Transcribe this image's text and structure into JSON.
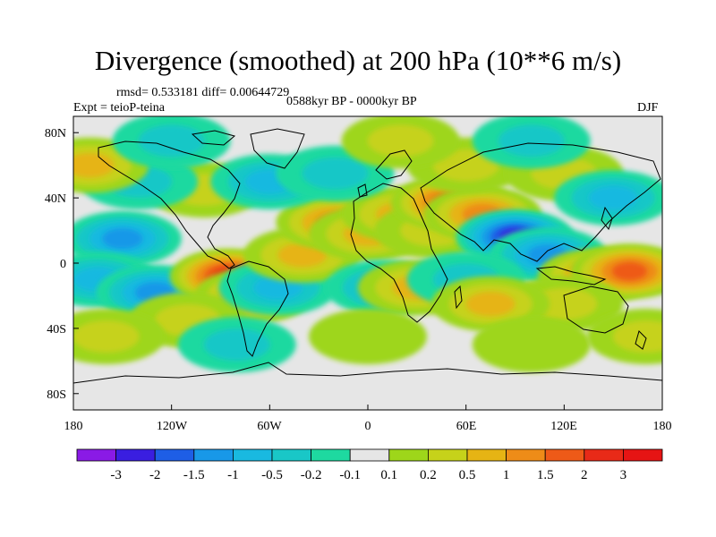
{
  "title": "Divergence (smoothed) at 200 hPa (10**6 m/s)",
  "stats_line": "rmsd= 0.533181 diff= 0.00644729",
  "period": "0588kyr BP - 0000kyr BP",
  "experiment": "Expt = teioP-teina",
  "season": "DJF",
  "lat_labels": [
    "80N",
    "40N",
    "0",
    "40S",
    "80S"
  ],
  "lon_labels": [
    "180",
    "120W",
    "60W",
    "0",
    "60E",
    "120E",
    "180"
  ],
  "colorbar": {
    "labels": [
      "-3",
      "-2",
      "-1.5",
      "-1",
      "-0.5",
      "-0.2",
      "-0.1",
      "0.1",
      "0.2",
      "0.5",
      "1",
      "1.5",
      "2",
      "3"
    ],
    "colors": [
      "#8a1ae6",
      "#3a1ee0",
      "#1e5ee6",
      "#1898e8",
      "#19b9e0",
      "#19c7c7",
      "#1ed9a0",
      "#e6e6e6",
      "#9ed61a",
      "#c6d21a",
      "#e6b414",
      "#ee8c18",
      "#ee5a18",
      "#e82a18",
      "#e61414"
    ]
  },
  "map_field": {
    "description_scale": "10**6 m/s",
    "blobs": [
      {
        "lon": -150,
        "lat": 15,
        "v": -1.2
      },
      {
        "lon": -165,
        "lat": -10,
        "v": -0.8
      },
      {
        "lon": -130,
        "lat": -18,
        "v": -1.6
      },
      {
        "lon": -85,
        "lat": -8,
        "v": 2.6
      },
      {
        "lon": -70,
        "lat": -20,
        "v": 1.4
      },
      {
        "lon": -110,
        "lat": -35,
        "v": 0.6
      },
      {
        "lon": -55,
        "lat": -15,
        "v": -1.0
      },
      {
        "lon": -40,
        "lat": 5,
        "v": 0.8
      },
      {
        "lon": -20,
        "lat": 25,
        "v": 1.2
      },
      {
        "lon": 0,
        "lat": 18,
        "v": 1.0
      },
      {
        "lon": 20,
        "lat": 30,
        "v": 1.1
      },
      {
        "lon": 40,
        "lat": 20,
        "v": 0.5
      },
      {
        "lon": 50,
        "lat": 37,
        "v": 1.7
      },
      {
        "lon": 70,
        "lat": 30,
        "v": 1.2
      },
      {
        "lon": 90,
        "lat": 16,
        "v": -2.3
      },
      {
        "lon": 110,
        "lat": 5,
        "v": -1.2
      },
      {
        "lon": 140,
        "lat": -8,
        "v": 1.6
      },
      {
        "lon": 160,
        "lat": -5,
        "v": 1.8
      },
      {
        "lon": 120,
        "lat": -25,
        "v": 0.6
      },
      {
        "lon": 10,
        "lat": -15,
        "v": -0.8
      },
      {
        "lon": 30,
        "lat": -15,
        "v": 0.9
      },
      {
        "lon": 60,
        "lat": -10,
        "v": -0.6
      },
      {
        "lon": 75,
        "lat": -25,
        "v": 0.8
      },
      {
        "lon": -100,
        "lat": 45,
        "v": 0.5
      },
      {
        "lon": -60,
        "lat": 50,
        "v": -0.9
      },
      {
        "lon": -20,
        "lat": 55,
        "v": -0.6
      },
      {
        "lon": 60,
        "lat": 60,
        "v": 0.6
      },
      {
        "lon": 120,
        "lat": 55,
        "v": 0.5
      },
      {
        "lon": 150,
        "lat": 40,
        "v": -0.8
      },
      {
        "lon": -140,
        "lat": 50,
        "v": -0.5
      },
      {
        "lon": -170,
        "lat": 60,
        "v": 0.8
      },
      {
        "lon": -120,
        "lat": 75,
        "v": -0.5
      },
      {
        "lon": 20,
        "lat": 75,
        "v": 0.5
      },
      {
        "lon": 100,
        "lat": 75,
        "v": -0.4
      },
      {
        "lon": -80,
        "lat": -50,
        "v": -0.6
      },
      {
        "lon": 0,
        "lat": -45,
        "v": 0.3
      },
      {
        "lon": 100,
        "lat": -50,
        "v": 0.3
      },
      {
        "lon": 170,
        "lat": -45,
        "v": 0.4
      },
      {
        "lon": -160,
        "lat": -45,
        "v": 0.5
      }
    ]
  }
}
